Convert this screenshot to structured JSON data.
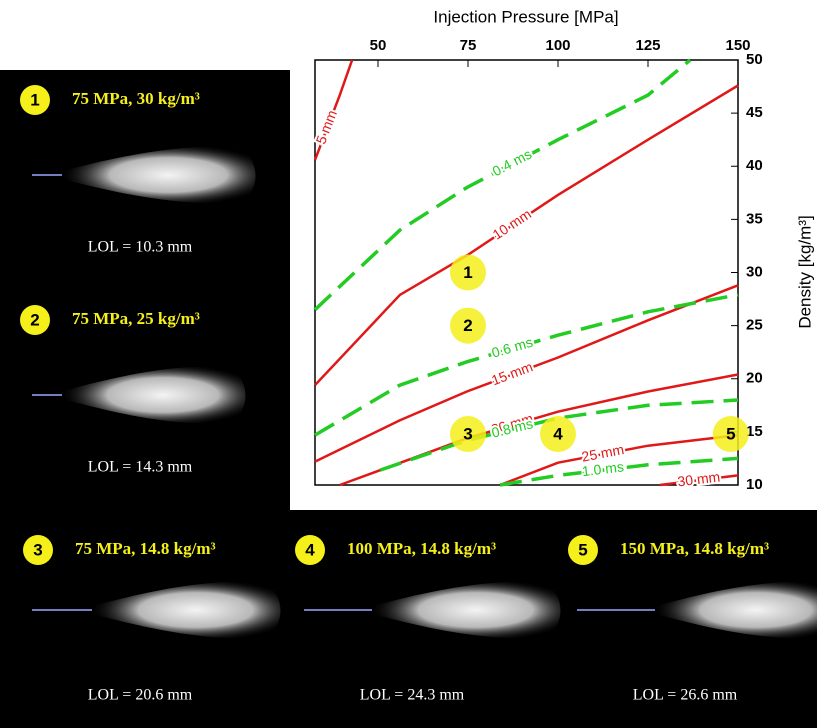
{
  "chart_data": {
    "type": "contour",
    "x_label": "Injection Pressure [MPa]",
    "y_label": "Density [kg/m³]",
    "xlim": [
      32.5,
      150
    ],
    "ylim": [
      10,
      50
    ],
    "xticks": [
      50,
      75,
      100,
      125,
      150
    ],
    "yticks": [
      10,
      15,
      20,
      25,
      30,
      35,
      40,
      45,
      50
    ],
    "contours": [
      {
        "label": "5 mm",
        "color": "#e01818",
        "dashed": false,
        "x": [
          32.5,
          39.4,
          42.8
        ],
        "y": [
          40.6,
          46.7,
          50
        ]
      },
      {
        "label": "10 mm",
        "color": "#e01818",
        "dashed": false,
        "x": [
          32.5,
          56.1,
          74.7,
          100,
          125,
          150
        ],
        "y": [
          19.4,
          27.9,
          31.6,
          37.3,
          42.5,
          47.6
        ]
      },
      {
        "label": "15 mm",
        "color": "#e01818",
        "dashed": false,
        "x": [
          32.5,
          56.1,
          74.7,
          100,
          125,
          150
        ],
        "y": [
          12.2,
          16.1,
          18.8,
          22,
          25.5,
          28.8
        ]
      },
      {
        "label": "20 mm",
        "color": "#e01818",
        "dashed": false,
        "x": [
          39.4,
          74.7,
          100,
          125,
          150
        ],
        "y": [
          10,
          14.4,
          16.9,
          18.8,
          20.4
        ]
      },
      {
        "label": "25 mm",
        "color": "#e01818",
        "dashed": false,
        "x": [
          83.9,
          100,
          125,
          150
        ],
        "y": [
          10,
          12.1,
          13.7,
          14.7
        ]
      },
      {
        "label": "30 mm",
        "color": "#e01818",
        "dashed": false,
        "x": [
          128.3,
          150
        ],
        "y": [
          10,
          10.9
        ]
      },
      {
        "label": "0.4 ms",
        "color": "#22cc22",
        "dashed": true,
        "x": [
          32.5,
          56.1,
          74.7,
          100,
          125,
          136.7
        ],
        "y": [
          26.5,
          34,
          38,
          42.5,
          46.7,
          50
        ]
      },
      {
        "label": "0.6 ms",
        "color": "#22cc22",
        "dashed": true,
        "x": [
          32.5,
          56.1,
          74.7,
          100,
          125,
          150
        ],
        "y": [
          14.7,
          19.4,
          21.6,
          24.1,
          26.3,
          27.9
        ]
      },
      {
        "label": "0.8 ms",
        "color": "#22cc22",
        "dashed": true,
        "x": [
          50.6,
          74.7,
          100,
          125,
          150
        ],
        "y": [
          11.4,
          14.2,
          16.3,
          17.5,
          18
        ]
      },
      {
        "label": "1.0 ms",
        "color": "#22cc22",
        "dashed": true,
        "x": [
          83.9,
          100,
          125,
          150
        ],
        "y": [
          10,
          10.9,
          11.9,
          12.5
        ]
      }
    ],
    "markers": {
      "color": "#f5ef1a",
      "labels": [
        "1",
        "2",
        "3",
        "4",
        "5"
      ],
      "x": [
        75,
        75,
        75,
        100,
        148
      ],
      "y": [
        30,
        25,
        14.8,
        14.8,
        14.8
      ]
    }
  },
  "panels": [
    {
      "number": "1",
      "title": "75 MPa, 30 kg/m³",
      "caption": "LOL = 10.3 mm"
    },
    {
      "number": "2",
      "title": "75 MPa, 25 kg/m³",
      "caption": "LOL = 14.3 mm"
    },
    {
      "number": "3",
      "title": "75 MPa, 14.8 kg/m³",
      "caption": "LOL = 20.6 mm"
    },
    {
      "number": "4",
      "title": "100 MPa, 14.8 kg/m³",
      "caption": "LOL = 24.3 mm"
    },
    {
      "number": "5",
      "title": "150 MPa, 14.8 kg/m³",
      "caption": "LOL = 26.6 mm"
    }
  ]
}
